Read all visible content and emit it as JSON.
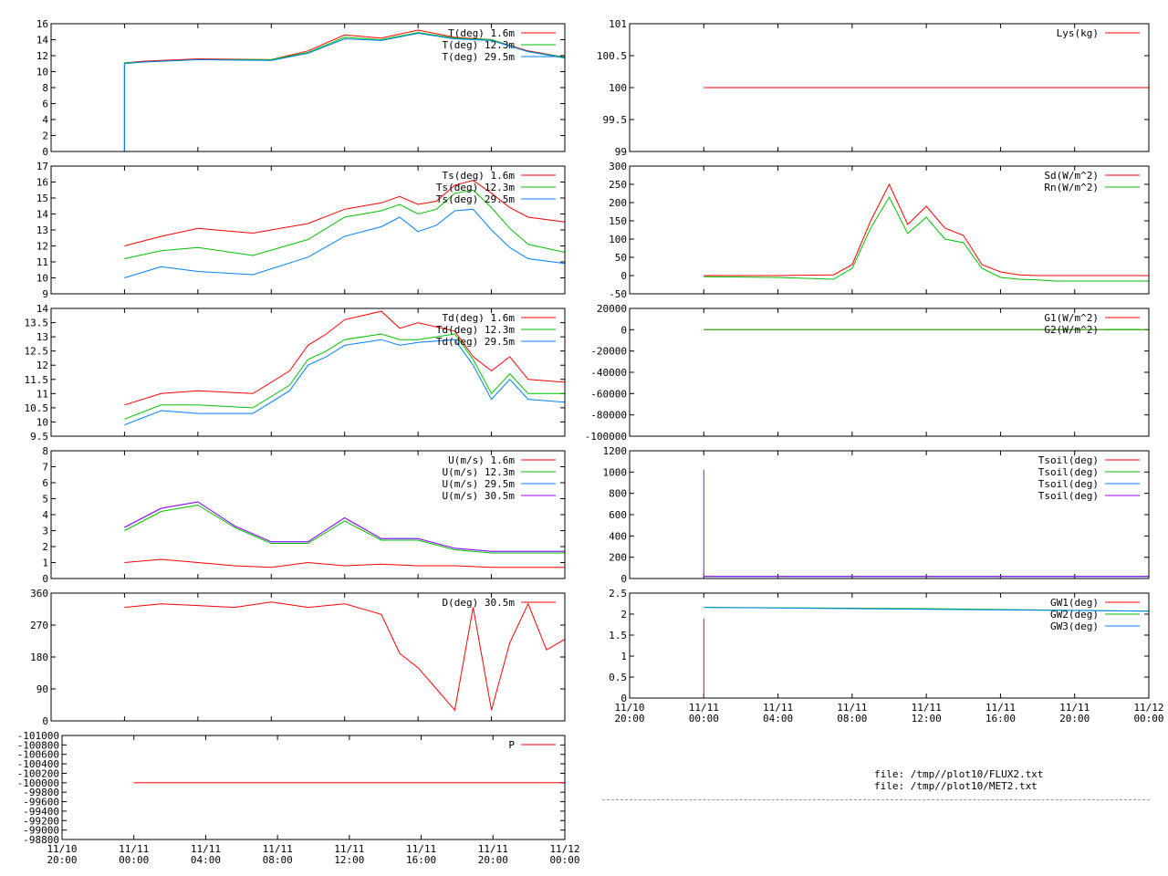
{
  "chart_data": [
    {
      "id": "t",
      "type": "line",
      "ylim": [
        0,
        16
      ],
      "yticks": [
        0,
        2,
        4,
        6,
        8,
        10,
        12,
        14,
        16
      ],
      "series": [
        {
          "name": "T(deg)  1.6m",
          "color": "#ff0000",
          "x": [
            4,
            4,
            5,
            8,
            12,
            14,
            16,
            18,
            20,
            22,
            24,
            26,
            28
          ],
          "y": [
            0,
            11.1,
            11.3,
            11.6,
            11.5,
            12.6,
            14.6,
            14.2,
            15.2,
            14.3,
            14.0,
            12.6,
            11.8
          ]
        },
        {
          "name": "T(deg) 12.3m",
          "color": "#00c000",
          "x": [
            4,
            4,
            5,
            8,
            12,
            14,
            16,
            18,
            20,
            22,
            24,
            26,
            28
          ],
          "y": [
            0,
            11.1,
            11.2,
            11.5,
            11.5,
            12.4,
            14.3,
            14.0,
            14.9,
            14.2,
            14.0,
            12.5,
            11.8
          ]
        },
        {
          "name": "T(deg) 29.5m",
          "color": "#0080ff",
          "x": [
            4,
            4,
            5,
            8,
            12,
            14,
            16,
            18,
            20,
            22,
            24,
            26,
            28
          ],
          "y": [
            0,
            11.0,
            11.2,
            11.5,
            11.4,
            12.3,
            14.1,
            13.9,
            14.8,
            14.1,
            13.9,
            12.5,
            11.7
          ]
        }
      ]
    },
    {
      "id": "ts",
      "type": "line",
      "ylim": [
        9,
        17
      ],
      "yticks": [
        9,
        10,
        11,
        12,
        13,
        14,
        15,
        16,
        17
      ],
      "series": [
        {
          "name": "Ts(deg)  1.6m",
          "color": "#ff0000",
          "x": [
            4,
            6,
            8,
            11,
            14,
            16,
            18,
            19,
            20,
            21,
            22,
            23,
            24,
            25,
            26,
            28
          ],
          "y": [
            12.0,
            12.6,
            13.1,
            12.8,
            13.4,
            14.3,
            14.7,
            15.1,
            14.6,
            14.8,
            15.8,
            16.1,
            15.3,
            14.4,
            13.8,
            13.5
          ]
        },
        {
          "name": "Ts(deg) 12.3m",
          "color": "#00c000",
          "x": [
            4,
            6,
            8,
            11,
            14,
            16,
            18,
            19,
            20,
            21,
            22,
            23,
            24,
            25,
            26,
            28
          ],
          "y": [
            11.2,
            11.7,
            11.9,
            11.4,
            12.4,
            13.8,
            14.2,
            14.6,
            14.0,
            14.3,
            15.3,
            15.5,
            14.4,
            13.1,
            12.1,
            11.6
          ]
        },
        {
          "name": "Ts(deg) 29.5m",
          "color": "#0080ff",
          "x": [
            4,
            6,
            8,
            11,
            14,
            16,
            18,
            19,
            20,
            21,
            22,
            23,
            24,
            25,
            26,
            28
          ],
          "y": [
            10.0,
            10.7,
            10.4,
            10.2,
            11.3,
            12.6,
            13.2,
            13.8,
            12.9,
            13.3,
            14.2,
            14.3,
            13.0,
            11.9,
            11.2,
            10.9
          ]
        }
      ]
    },
    {
      "id": "td",
      "type": "line",
      "ylim": [
        9.5,
        14
      ],
      "yticks": [
        9.5,
        10,
        10.5,
        11,
        11.5,
        12,
        12.5,
        13,
        13.5,
        14
      ],
      "series": [
        {
          "name": "Td(deg)  1.6m",
          "color": "#ff0000",
          "x": [
            4,
            6,
            8,
            11,
            13,
            14,
            15,
            16,
            18,
            19,
            20,
            22,
            23,
            24,
            25,
            26,
            28
          ],
          "y": [
            10.6,
            11.0,
            11.1,
            11.0,
            11.8,
            12.7,
            13.1,
            13.6,
            13.9,
            13.3,
            13.5,
            13.2,
            12.3,
            11.8,
            12.3,
            11.5,
            11.4
          ]
        },
        {
          "name": "Td(deg) 12.3m",
          "color": "#00c000",
          "x": [
            4,
            6,
            8,
            11,
            13,
            14,
            15,
            16,
            18,
            19,
            20,
            22,
            23,
            24,
            25,
            26,
            28
          ],
          "y": [
            10.1,
            10.6,
            10.6,
            10.5,
            11.3,
            12.2,
            12.5,
            12.9,
            13.1,
            12.9,
            12.9,
            13.1,
            12.2,
            11.0,
            11.7,
            11.0,
            11.0
          ]
        },
        {
          "name": "Td(deg) 29.5m",
          "color": "#0080ff",
          "x": [
            4,
            6,
            8,
            11,
            13,
            14,
            15,
            16,
            18,
            19,
            20,
            22,
            23,
            24,
            25,
            26,
            28
          ],
          "y": [
            9.9,
            10.4,
            10.3,
            10.3,
            11.1,
            12.0,
            12.3,
            12.7,
            12.9,
            12.7,
            12.8,
            12.9,
            12.0,
            10.8,
            11.5,
            10.8,
            10.7
          ]
        }
      ]
    },
    {
      "id": "u",
      "type": "line",
      "ylim": [
        0,
        8
      ],
      "yticks": [
        0,
        1,
        2,
        3,
        4,
        5,
        6,
        7,
        8
      ],
      "series": [
        {
          "name": "U(m/s)  1.6m",
          "color": "#ff0000",
          "x": [
            4,
            6,
            8,
            10,
            12,
            14,
            16,
            18,
            20,
            22,
            24,
            26,
            28
          ],
          "y": [
            1.0,
            1.2,
            1.0,
            0.8,
            0.7,
            1.0,
            0.8,
            0.9,
            0.8,
            0.8,
            0.7,
            0.7,
            0.7
          ]
        },
        {
          "name": "U(m/s) 12.3m",
          "color": "#00c000",
          "x": [
            4,
            6,
            8,
            10,
            12,
            14,
            16,
            18,
            20,
            22,
            24,
            26,
            28
          ],
          "y": [
            3.0,
            4.2,
            4.6,
            3.2,
            2.2,
            2.2,
            3.6,
            2.4,
            2.4,
            1.8,
            1.6,
            1.6,
            1.6
          ]
        },
        {
          "name": "U(m/s) 29.5m",
          "color": "#0080ff",
          "x": [
            4,
            6,
            8,
            10,
            12,
            14,
            16,
            18,
            20,
            22,
            24,
            26,
            28
          ],
          "y": [
            3.2,
            4.4,
            4.8,
            3.3,
            2.3,
            2.3,
            3.8,
            2.5,
            2.5,
            1.9,
            1.7,
            1.7,
            1.7
          ]
        },
        {
          "name": "U(m/s) 30.5m",
          "color": "#a000ff",
          "x": [
            4,
            6,
            8,
            10,
            12,
            14,
            16,
            18,
            20,
            22,
            24,
            26,
            28
          ],
          "y": [
            3.2,
            4.4,
            4.8,
            3.3,
            2.3,
            2.3,
            3.8,
            2.5,
            2.5,
            1.9,
            1.7,
            1.7,
            1.7
          ]
        }
      ]
    },
    {
      "id": "d",
      "type": "line",
      "ylim": [
        0,
        360
      ],
      "yticks": [
        0,
        90,
        180,
        270,
        360
      ],
      "series": [
        {
          "name": "D(deg)  30.5m",
          "color": "#ff0000",
          "x": [
            4,
            6,
            8,
            10,
            12,
            14,
            16,
            18,
            19,
            20,
            21,
            22,
            23,
            24,
            25,
            26,
            27,
            28
          ],
          "y": [
            320,
            330,
            325,
            320,
            335,
            320,
            330,
            300,
            190,
            150,
            90,
            30,
            320,
            30,
            220,
            330,
            200,
            230
          ]
        }
      ]
    },
    {
      "id": "p",
      "type": "line",
      "ylim": [
        -98800,
        -101000
      ],
      "yticks": [
        -98800,
        -99000,
        -99200,
        -99400,
        -99600,
        -99800,
        -100000,
        -100200,
        -100400,
        -100600,
        -100800,
        -101000
      ],
      "series": [
        {
          "name": "P",
          "color": "#ff0000",
          "x": [
            4,
            28
          ],
          "y": [
            -100000,
            -100000
          ]
        }
      ]
    },
    {
      "id": "lys",
      "type": "line",
      "ylim": [
        99,
        101
      ],
      "yticks": [
        99,
        99.5,
        100,
        100.5,
        101
      ],
      "series": [
        {
          "name": "Lys(kg)",
          "color": "#ff0000",
          "x": [
            4,
            28
          ],
          "y": [
            100,
            100
          ]
        }
      ]
    },
    {
      "id": "rad",
      "type": "line",
      "ylim": [
        -50,
        300
      ],
      "yticks": [
        -50,
        0,
        50,
        100,
        150,
        200,
        250,
        300
      ],
      "series": [
        {
          "name": "Sd(W/m^2)",
          "color": "#ff0000",
          "x": [
            4,
            8,
            11,
            12,
            13,
            14,
            15,
            16,
            17,
            18,
            19,
            20,
            21,
            22,
            23,
            24,
            28
          ],
          "y": [
            0,
            0,
            2,
            30,
            150,
            250,
            140,
            190,
            130,
            110,
            30,
            10,
            2,
            0,
            0,
            0,
            0
          ]
        },
        {
          "name": "Rn(W/m^2)",
          "color": "#00c000",
          "x": [
            4,
            8,
            11,
            12,
            13,
            14,
            15,
            16,
            17,
            18,
            19,
            20,
            21,
            22,
            23,
            24,
            28
          ],
          "y": [
            -3,
            -5,
            -10,
            20,
            130,
            215,
            115,
            160,
            100,
            90,
            20,
            -5,
            -10,
            -12,
            -15,
            -15,
            -15
          ]
        }
      ]
    },
    {
      "id": "g",
      "type": "line",
      "ylim": [
        -100000,
        20000
      ],
      "yticks": [
        -100000,
        -80000,
        -60000,
        -40000,
        -20000,
        0,
        20000
      ],
      "series": [
        {
          "name": "G1(W/m^2)",
          "color": "#ff0000",
          "x": [
            4,
            28
          ],
          "y": [
            0,
            0
          ]
        },
        {
          "name": "G2(W/m^2)",
          "color": "#00c000",
          "x": [
            4,
            28
          ],
          "y": [
            0,
            0
          ]
        }
      ]
    },
    {
      "id": "tsoil",
      "type": "line",
      "ylim": [
        0,
        1200
      ],
      "yticks": [
        0,
        200,
        400,
        600,
        800,
        1000,
        1200
      ],
      "series": [
        {
          "name": "Tsoil(deg)",
          "color": "#ff0000",
          "x": [
            4,
            28
          ],
          "y": [
            20,
            20
          ]
        },
        {
          "name": "Tsoil(deg)",
          "color": "#00c000",
          "x": [
            4,
            28
          ],
          "y": [
            20,
            20
          ]
        },
        {
          "name": "Tsoil(deg)",
          "color": "#0080ff",
          "x": [
            4,
            28
          ],
          "y": [
            20,
            20
          ]
        },
        {
          "name": "Tsoil(deg)",
          "color": "#a000ff",
          "x": [
            4,
            4,
            4,
            28
          ],
          "y": [
            0,
            1020,
            20,
            20
          ]
        }
      ]
    },
    {
      "id": "gw",
      "type": "line",
      "ylim": [
        0,
        2.5
      ],
      "yticks": [
        0,
        0.5,
        1,
        1.5,
        2,
        2.5
      ],
      "series": [
        {
          "name": "GW1(deg)",
          "color": "#ff0000",
          "x": [
            4,
            4,
            4
          ],
          "y": [
            0,
            1.9,
            0
          ]
        },
        {
          "name": "GW2(deg)",
          "color": "#00c000",
          "x": [
            4,
            16,
            24,
            28
          ],
          "y": [
            2.16,
            2.13,
            2.09,
            2.07
          ]
        },
        {
          "name": "GW3(deg)",
          "color": "#0080ff",
          "x": [
            4,
            28
          ],
          "y": [
            2.16,
            2.07
          ]
        }
      ]
    }
  ],
  "x_ticks": [
    {
      "x": 0,
      "date": "11/10",
      "time": "20:00"
    },
    {
      "x": 4,
      "date": "11/11",
      "time": "00:00"
    },
    {
      "x": 8,
      "date": "11/11",
      "time": "04:00"
    },
    {
      "x": 12,
      "date": "11/11",
      "time": "08:00"
    },
    {
      "x": 16,
      "date": "11/11",
      "time": "12:00"
    },
    {
      "x": 20,
      "date": "11/11",
      "time": "16:00"
    },
    {
      "x": 24,
      "date": "11/11",
      "time": "20:00"
    },
    {
      "x": 28,
      "date": "11/12",
      "time": "00:00"
    }
  ],
  "xlim": [
    0,
    28
  ],
  "files": [
    "file: /tmp//plot10/FLUX2.txt",
    "file: /tmp//plot10/MET2.txt"
  ]
}
